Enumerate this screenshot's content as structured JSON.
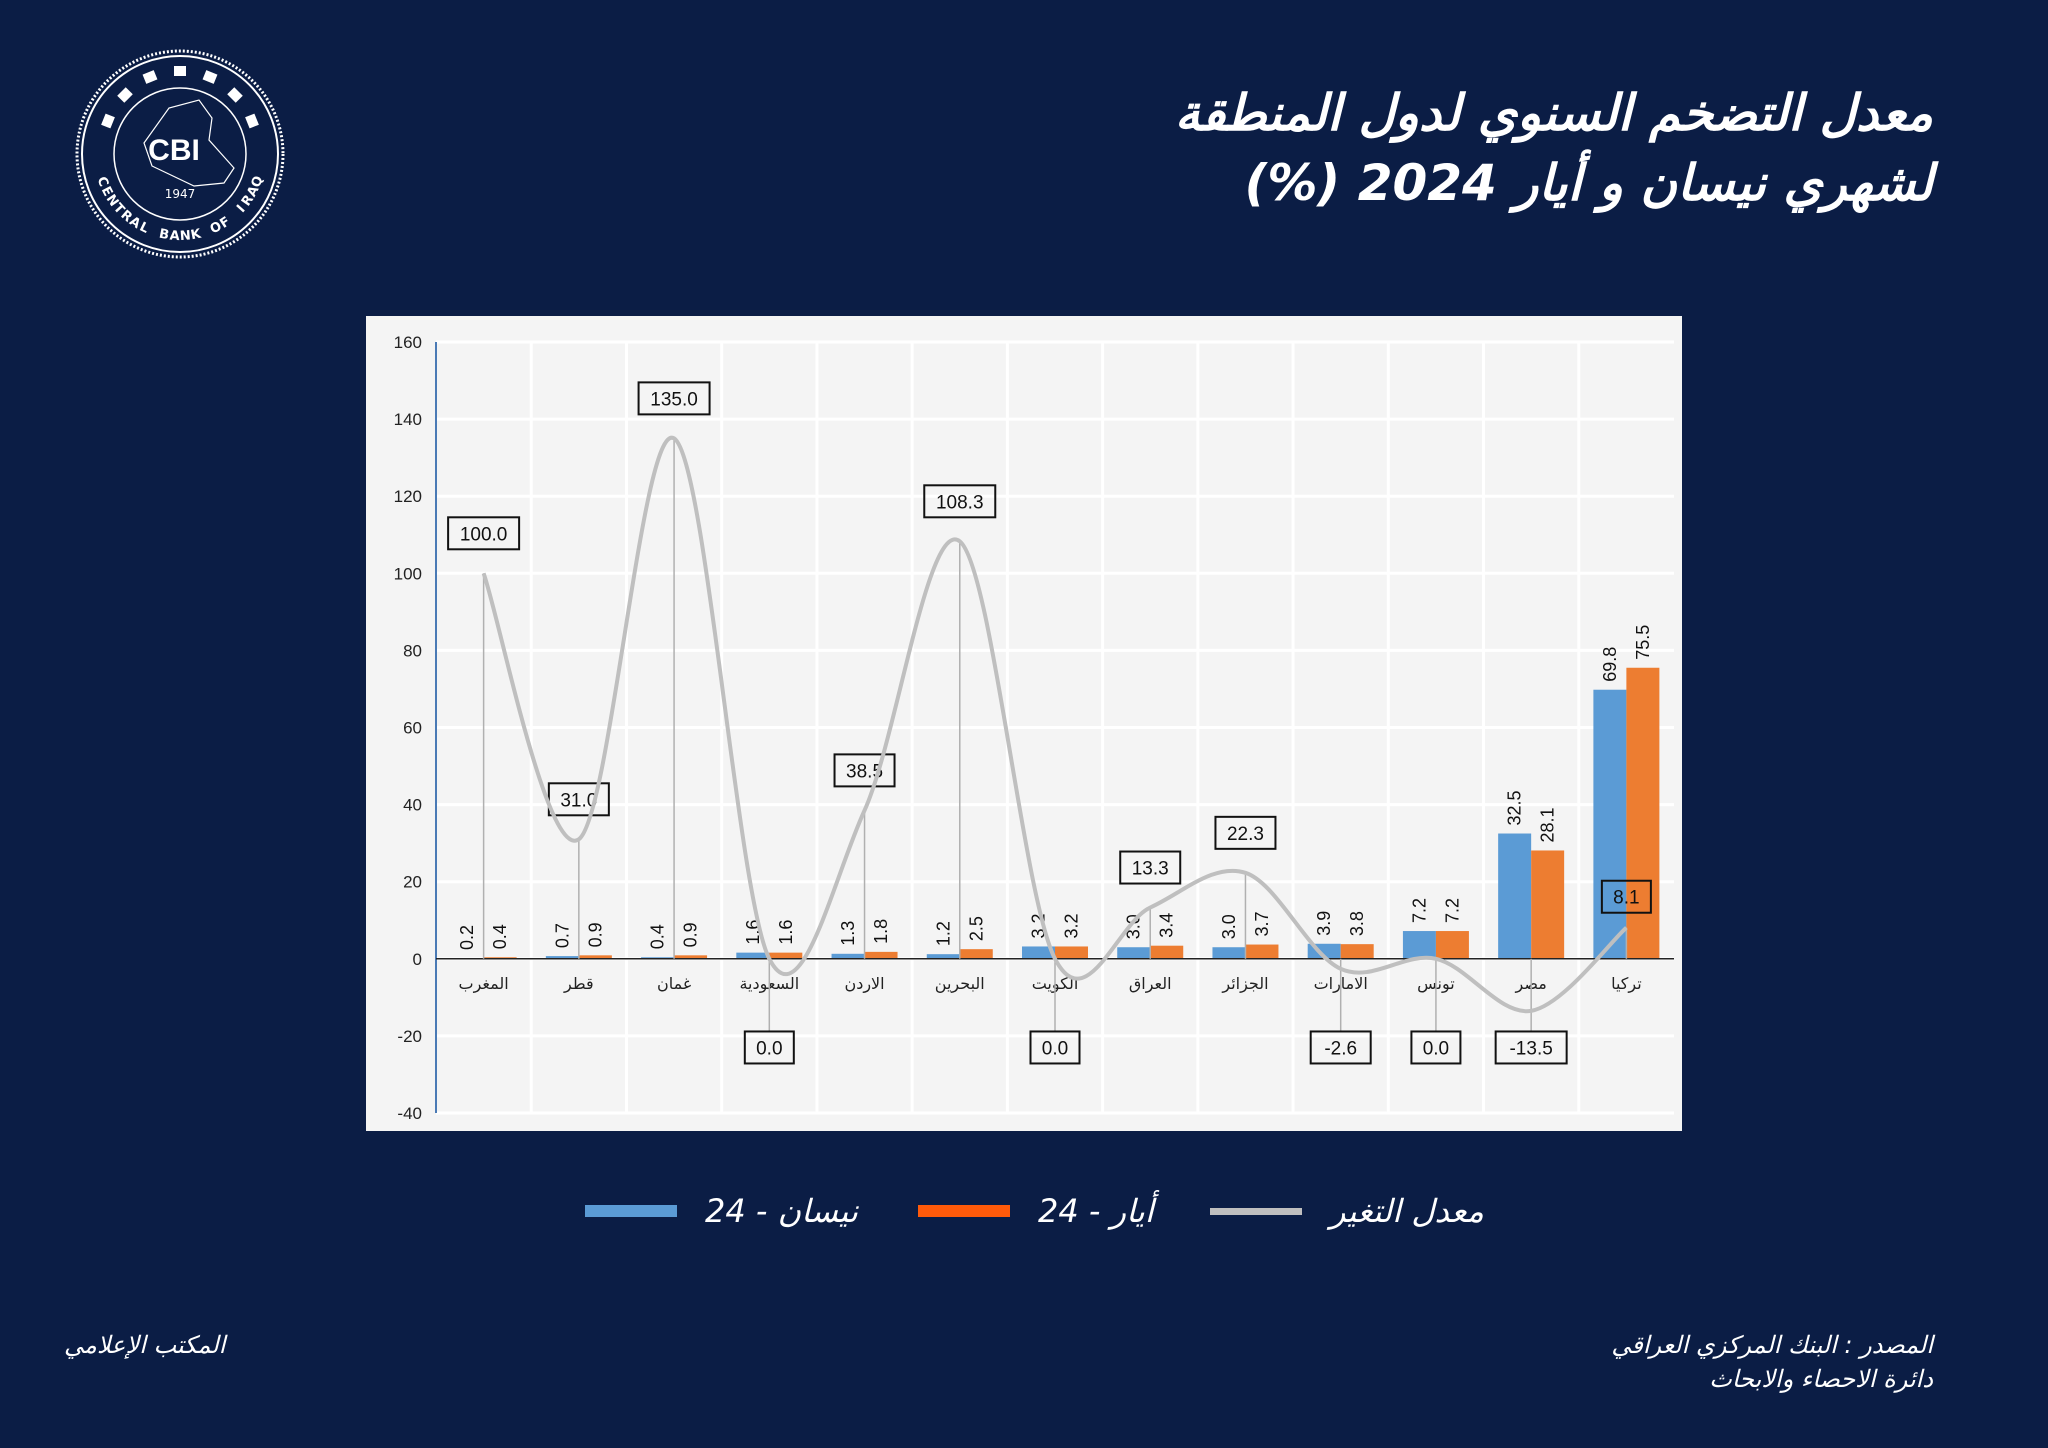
{
  "header": {
    "title_line1": "معدل التضخم السنوي لدول المنطقة",
    "title_line2": "لشهري نيسان و أيار 2024 (%)"
  },
  "logo": {
    "text": "CBI",
    "ring_text": "CENTRAL BANK OF IRAQ",
    "year": "1947"
  },
  "colors": {
    "background": "#0b1d45",
    "april": "#5b9bd5",
    "may": "#ed7d31",
    "change": "#bfbfbf",
    "panel": "#f4f4f4"
  },
  "chart_data": {
    "type": "bar",
    "categories": [
      "المغرب",
      "قطر",
      "غمان",
      "السعودية",
      "الاردن",
      "البحرين",
      "الكويت",
      "العراق",
      "الجزائر",
      "الامارات",
      "تونس",
      "مصر",
      "تركيا"
    ],
    "series": [
      {
        "name": "نيسان - 24",
        "type": "bar",
        "values": [
          0.2,
          0.7,
          0.4,
          1.6,
          1.3,
          1.2,
          3.2,
          3.0,
          3.0,
          3.9,
          7.2,
          32.5,
          69.8
        ]
      },
      {
        "name": "أيار - 24",
        "type": "bar",
        "values": [
          0.4,
          0.9,
          0.9,
          1.6,
          1.8,
          2.5,
          3.2,
          3.4,
          3.7,
          3.8,
          7.2,
          28.1,
          75.5
        ]
      },
      {
        "name": "معدل التغير",
        "type": "line",
        "values": [
          100.0,
          31.0,
          135.0,
          0.0,
          38.5,
          108.3,
          0.0,
          13.3,
          22.3,
          -2.6,
          0.0,
          -13.5,
          8.1
        ]
      }
    ],
    "ylim": [
      -40,
      160
    ],
    "yticks": [
      160,
      140,
      120,
      100,
      80,
      60,
      40,
      20,
      0,
      -20,
      -40
    ],
    "grid": true,
    "legend_position": "bottom"
  },
  "legend": [
    {
      "label": "معدل التغير"
    },
    {
      "label": "أيار - 24"
    },
    {
      "label": "نيسان - 24"
    }
  ],
  "footer": {
    "left": "المكتب الإعلامي",
    "source_line1": "المصدر : البنك المركزي العراقي",
    "source_line2": "دائرة الاحصاء والابحاث"
  }
}
